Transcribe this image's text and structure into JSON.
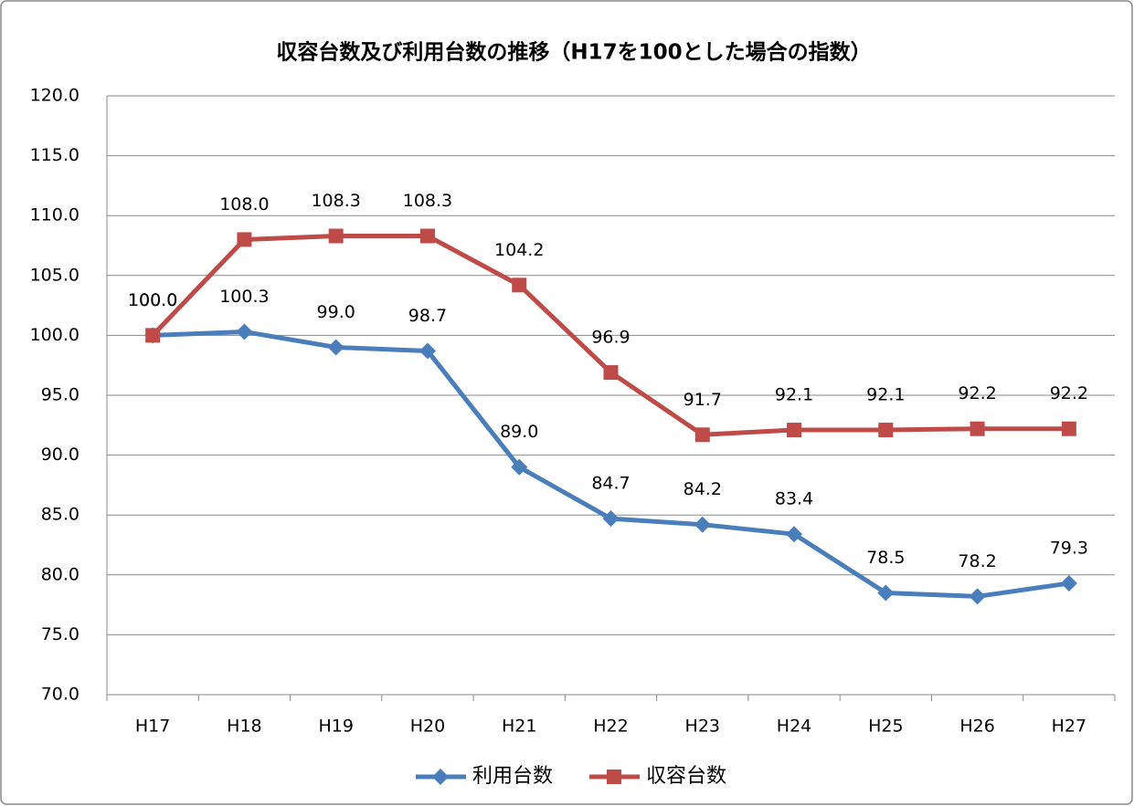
{
  "chart_data": {
    "type": "line",
    "title": "収容台数及び利用台数の推移（H17を100とした場合の指数）",
    "categories": [
      "H17",
      "H18",
      "H19",
      "H20",
      "H21",
      "H22",
      "H23",
      "H24",
      "H25",
      "H26",
      "H27"
    ],
    "series": [
      {
        "name": "利用台数",
        "color": "#4a7ebb",
        "marker": "diamond",
        "values": [
          100,
          100.3,
          99,
          98.7,
          89,
          84.7,
          84.2,
          83.4,
          78.5,
          78.2,
          79.3
        ],
        "value_labels": [
          "100.0",
          "100.3",
          "99.0",
          "98.7",
          "89.0",
          "84.7",
          "84.2",
          "83.4",
          "78.5",
          "78.2",
          "79.3"
        ]
      },
      {
        "name": "収容台数",
        "color": "#be4b48",
        "marker": "square",
        "values": [
          100,
          108,
          108.3,
          108.3,
          104.2,
          96.9,
          91.7,
          92.1,
          92.1,
          92.2,
          92.2
        ],
        "value_labels": [
          "100.0",
          "108.0",
          "108.3",
          "108.3",
          "104.2",
          "96.9",
          "91.7",
          "92.1",
          "92.1",
          "92.2",
          "92.2"
        ]
      }
    ],
    "ylim": [
      70,
      120
    ],
    "yticks": [
      {
        "value": 70,
        "label": "70.0"
      },
      {
        "value": 75,
        "label": "75.0"
      },
      {
        "value": 80,
        "label": "80.0"
      },
      {
        "value": 85,
        "label": "85.0"
      },
      {
        "value": 90,
        "label": "90.0"
      },
      {
        "value": 95,
        "label": "95.0"
      },
      {
        "value": 100,
        "label": "100.0"
      },
      {
        "value": 105,
        "label": "105.0"
      },
      {
        "value": 110,
        "label": "110.0"
      },
      {
        "value": 115,
        "label": "115.0"
      },
      {
        "value": 120,
        "label": "120.0"
      }
    ],
    "grid": true,
    "legend": "bottom"
  }
}
